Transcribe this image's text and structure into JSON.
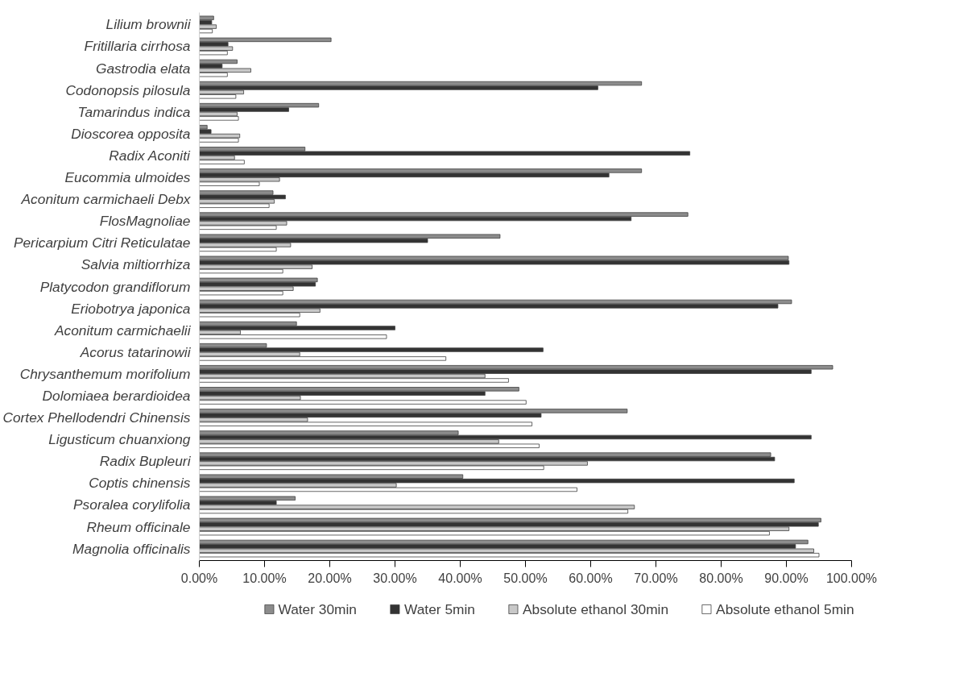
{
  "chart_data": {
    "type": "bar",
    "orientation": "horizontal",
    "categories": [
      "Lilium brownii",
      "Fritillaria cirrhosa",
      "Gastrodia elata",
      "Codonopsis pilosula",
      "Tamarindus indica",
      "Dioscorea opposita",
      "Radix Aconiti",
      "Eucommia ulmoides",
      "Aconitum carmichaeli Debx",
      "FlosMagnoliae",
      "Pericarpium Citri Reticulatae",
      "Salvia miltiorrhiza",
      "Platycodon grandiflorum",
      "Eriobotrya japonica",
      "Aconitum carmichaelii",
      "Acorus tatarinowii",
      "Chrysanthemum morifolium",
      "Dolomiaea berardioidea",
      "Cortex Phellodendri Chinensis",
      "Ligusticum chuanxiong",
      "Radix Bupleuri",
      "Coptis chinensis",
      "Psoralea corylifolia",
      "Rheum officinale",
      "Magnolia officinalis"
    ],
    "series": [
      {
        "name": "Water 30min",
        "color": "#8c8c8c",
        "values": [
          2.2,
          20.2,
          5.8,
          67.8,
          18.3,
          1.2,
          16.2,
          67.8,
          11.3,
          74.9,
          46.1,
          90.3,
          18.1,
          90.8,
          14.9,
          10.3,
          97.1,
          49.0,
          65.6,
          39.7,
          87.6,
          40.4,
          14.7,
          95.3,
          93.3
        ]
      },
      {
        "name": "Water 5min",
        "color": "#333333",
        "values": [
          1.9,
          4.4,
          3.5,
          61.1,
          13.7,
          1.8,
          75.2,
          62.8,
          13.2,
          66.2,
          35.0,
          90.4,
          17.8,
          88.7,
          30.0,
          52.7,
          93.8,
          43.8,
          52.4,
          93.8,
          88.2,
          91.2,
          11.8,
          94.9,
          91.4
        ]
      },
      {
        "name": "Absolute ethanol 30min",
        "color": "#c8c8c8",
        "values": [
          2.6,
          5.1,
          7.9,
          6.8,
          5.8,
          6.2,
          5.4,
          12.3,
          11.5,
          13.4,
          14.0,
          17.3,
          14.4,
          18.5,
          6.3,
          15.4,
          43.8,
          15.5,
          16.6,
          45.9,
          59.5,
          30.2,
          66.7,
          90.4,
          94.2
        ]
      },
      {
        "name": "Absolute ethanol 5min",
        "color": "#ffffff",
        "values": [
          2.0,
          4.3,
          4.3,
          5.6,
          6.0,
          6.0,
          6.9,
          9.2,
          10.7,
          11.8,
          11.8,
          12.8,
          12.8,
          15.4,
          28.7,
          37.8,
          47.4,
          50.1,
          51.0,
          52.1,
          52.8,
          57.9,
          65.7,
          87.4,
          95.0
        ]
      }
    ],
    "xlim": [
      0,
      100
    ],
    "xticks": [
      {
        "value": 0,
        "label": "0.00%"
      },
      {
        "value": 10,
        "label": "10.00%"
      },
      {
        "value": 20,
        "label": "20.00%"
      },
      {
        "value": 30,
        "label": "30.00%"
      },
      {
        "value": 40,
        "label": "40.00%"
      },
      {
        "value": 50,
        "label": "50.00%"
      },
      {
        "value": 60,
        "label": "60.00%"
      },
      {
        "value": 70,
        "label": "70.00%"
      },
      {
        "value": 80,
        "label": "80.00%"
      },
      {
        "value": 90,
        "label": "90.00%"
      },
      {
        "value": 100,
        "label": "100.00%"
      }
    ],
    "grid": false,
    "legend": "bottom"
  }
}
